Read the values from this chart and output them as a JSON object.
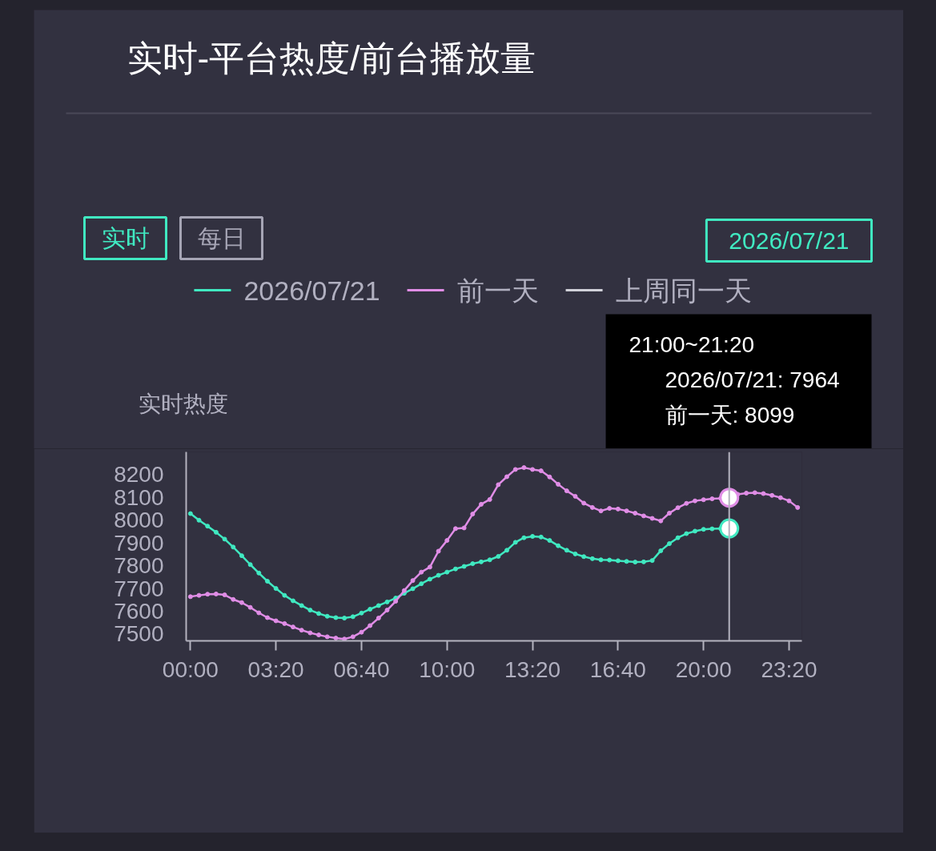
{
  "chart_data": {
    "type": "line",
    "title": "实时-平台热度/前台播放量",
    "ylabel": "实时热度",
    "x": [
      0,
      0.333,
      0.667,
      1,
      1.333,
      1.667,
      2,
      2.333,
      2.667,
      3,
      3.333,
      3.667,
      4,
      4.333,
      4.667,
      5,
      5.333,
      5.667,
      6,
      6.333,
      6.667,
      7,
      7.333,
      7.667,
      8,
      8.333,
      8.667,
      9,
      9.333,
      9.667,
      10,
      10.333,
      10.667,
      11,
      11.333,
      11.667,
      12,
      12.333,
      12.667,
      13,
      13.333,
      13.667,
      14,
      14.333,
      14.667,
      15,
      15.333,
      15.667,
      16,
      16.333,
      16.667,
      17,
      17.333,
      17.667,
      18,
      18.333,
      18.667,
      19,
      19.333,
      19.667,
      20,
      20.333,
      20.667,
      21,
      21.333,
      21.667,
      22,
      22.333,
      22.667,
      23,
      23.333,
      23.667
    ],
    "xlim": [
      -0.167,
      23.833
    ],
    "xticks": [
      {
        "value": 0,
        "label": "00:00"
      },
      {
        "value": 3.333,
        "label": "03:20"
      },
      {
        "value": 6.667,
        "label": "06:40"
      },
      {
        "value": 10,
        "label": "10:00"
      },
      {
        "value": 13.333,
        "label": "13:20"
      },
      {
        "value": 16.667,
        "label": "16:40"
      },
      {
        "value": 20,
        "label": "20:00"
      },
      {
        "value": 23.333,
        "label": "23:20"
      }
    ],
    "ylim": [
      7470,
      8300
    ],
    "yticks": [
      7500,
      7600,
      7700,
      7800,
      7900,
      8000,
      8100,
      8200
    ],
    "series": [
      {
        "name": "2026/07/21",
        "color": "#40e9c1",
        "values": [
          8029,
          8000,
          7974,
          7947,
          7917,
          7882,
          7844,
          7805,
          7768,
          7732,
          7700,
          7670,
          7646,
          7625,
          7605,
          7590,
          7578,
          7572,
          7570,
          7576,
          7592,
          7609,
          7625,
          7641,
          7658,
          7679,
          7699,
          7721,
          7741,
          7758,
          7772,
          7786,
          7797,
          7809,
          7817,
          7826,
          7841,
          7868,
          7903,
          7923,
          7929,
          7926,
          7911,
          7888,
          7868,
          7852,
          7840,
          7831,
          7826,
          7825,
          7822,
          7819,
          7816,
          7817,
          7823,
          7866,
          7897,
          7923,
          7941,
          7952,
          7960,
          7962,
          7963,
          7964,
          null,
          null,
          null,
          null,
          null,
          null,
          null,
          null
        ]
      },
      {
        "name": "前一天",
        "color": "#e08de6",
        "values": [
          7664,
          7670,
          7675,
          7676,
          7672,
          7652,
          7638,
          7617,
          7593,
          7572,
          7558,
          7546,
          7531,
          7517,
          7505,
          7496,
          7488,
          7482,
          7478,
          7488,
          7508,
          7537,
          7570,
          7605,
          7644,
          7691,
          7735,
          7772,
          7794,
          7864,
          7911,
          7963,
          7966,
          8027,
          8070,
          8091,
          8156,
          8191,
          8223,
          8231,
          8223,
          8217,
          8190,
          8158,
          8129,
          8105,
          8075,
          8056,
          8041,
          8052,
          8049,
          8041,
          8031,
          8019,
          8008,
          7997,
          8031,
          8055,
          8074,
          8085,
          8090,
          8094,
          8096,
          8099,
          8114,
          8119,
          8121,
          8117,
          8109,
          8099,
          8085,
          8056
        ]
      },
      {
        "name": "上周同一天",
        "color": "#d0d0d8",
        "values": [
          null,
          null,
          null,
          null,
          null,
          null,
          null,
          null,
          null,
          null,
          null,
          null,
          null,
          null,
          null,
          null,
          null,
          null,
          null,
          null,
          null,
          null,
          null,
          null,
          null,
          null,
          null,
          null,
          null,
          null,
          null,
          null,
          null,
          null,
          null,
          null,
          null,
          null,
          null,
          null,
          null,
          null,
          null,
          null,
          null,
          null,
          null,
          null,
          null,
          null,
          null,
          null,
          null,
          null,
          null,
          null,
          null,
          null,
          null,
          null,
          null,
          null,
          null,
          null,
          null,
          null,
          null,
          null,
          null,
          null,
          null,
          null
        ]
      }
    ],
    "legend": "top",
    "grid": false,
    "marker": "circle",
    "line_style": "solid",
    "ref_lines": [
      {
        "axis": "x",
        "value": 21,
        "color": "#b4b3bf"
      }
    ],
    "annotations": [
      "实时",
      "每日",
      "2026/07/21",
      "21:00~21:20",
      "2026/07/21: 7964",
      "前一天: 8099"
    ]
  }
}
